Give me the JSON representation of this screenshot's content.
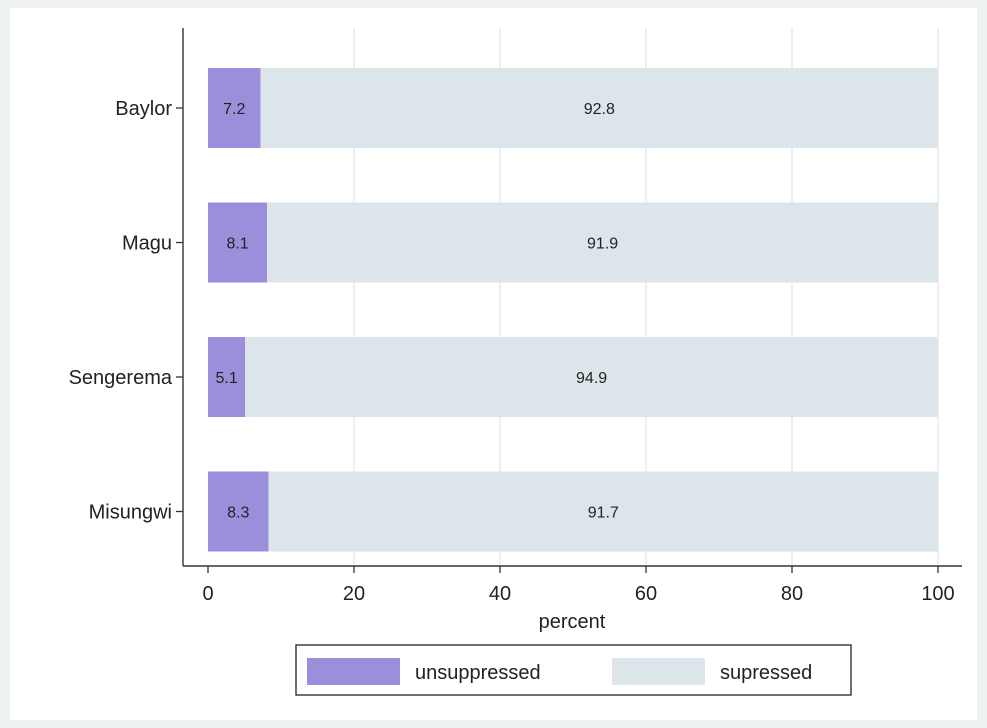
{
  "chart_data": {
    "type": "bar",
    "orientation": "horizontal",
    "stacked": true,
    "categories": [
      "Baylor",
      "Magu",
      "Sengerema",
      "Misungwi"
    ],
    "series": [
      {
        "name": "unsuppressed",
        "color": "#9b8fdc",
        "values": [
          7.2,
          8.1,
          5.1,
          8.3
        ]
      },
      {
        "name": "supressed",
        "color": "#dce6ea",
        "values": [
          92.8,
          91.9,
          94.9,
          91.7
        ]
      }
    ],
    "data_labels": [
      [
        "7.2",
        "92.8"
      ],
      [
        "8.1",
        "91.9"
      ],
      [
        "5.1",
        "94.9"
      ],
      [
        "8.3",
        "91.7"
      ]
    ],
    "xlabel": "percent",
    "ylabel": "",
    "xlim": [
      0,
      100
    ],
    "xticks": [
      0,
      20,
      40,
      60,
      80,
      100
    ],
    "grid": true,
    "legend_position": "bottom"
  }
}
